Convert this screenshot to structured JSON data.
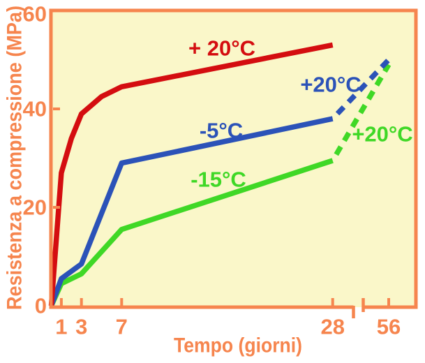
{
  "chart_data": {
    "type": "line",
    "title": "",
    "xlabel": "Tempo (giorni)",
    "ylabel": "Resistenza a compressione (MPa)",
    "x_ticks": [
      1,
      3,
      7,
      28,
      56
    ],
    "y_ticks": [
      0,
      20,
      40,
      60
    ],
    "xlim": [
      0,
      56
    ],
    "ylim": [
      0,
      60
    ],
    "x_axis_break_between": [
      28,
      56
    ],
    "grid": false,
    "legend_position": "labels-on-curves",
    "colors": {
      "axis": "#F6854E",
      "plot_bg": "#FAF7C9",
      "page_bg": "#FFFFFF",
      "red": "#D40D10",
      "blue": "#2B52B8",
      "green": "#3FD826"
    },
    "series": [
      {
        "id": "plus20-solid",
        "label": "+ 20°C",
        "color_key": "red",
        "dashed": false,
        "points": [
          [
            0,
            0
          ],
          [
            1,
            27
          ],
          [
            2,
            34
          ],
          [
            3,
            39
          ],
          [
            5,
            42.5
          ],
          [
            7,
            44.5
          ],
          [
            28,
            53
          ]
        ]
      },
      {
        "id": "minus5-solid",
        "label": "-5°C",
        "color_key": "blue",
        "dashed": false,
        "points": [
          [
            0,
            0
          ],
          [
            1,
            5.5
          ],
          [
            2,
            7
          ],
          [
            3,
            8.5
          ],
          [
            7,
            29
          ],
          [
            28,
            38
          ]
        ]
      },
      {
        "id": "minus15-solid",
        "label": "-15°C",
        "color_key": "green",
        "dashed": false,
        "points": [
          [
            0,
            0
          ],
          [
            1,
            4.5
          ],
          [
            3,
            6.5
          ],
          [
            7,
            15.5
          ],
          [
            28,
            29.5
          ]
        ]
      },
      {
        "id": "minus5-then-plus20-dashed",
        "label": "+20°C",
        "color_key": "blue",
        "dashed": true,
        "points": [
          [
            28,
            38
          ],
          [
            56,
            50
          ]
        ]
      },
      {
        "id": "minus15-then-plus20-dashed",
        "label": "+20°C",
        "color_key": "green",
        "dashed": true,
        "points": [
          [
            28,
            29.5
          ],
          [
            56,
            49
          ]
        ]
      }
    ]
  }
}
